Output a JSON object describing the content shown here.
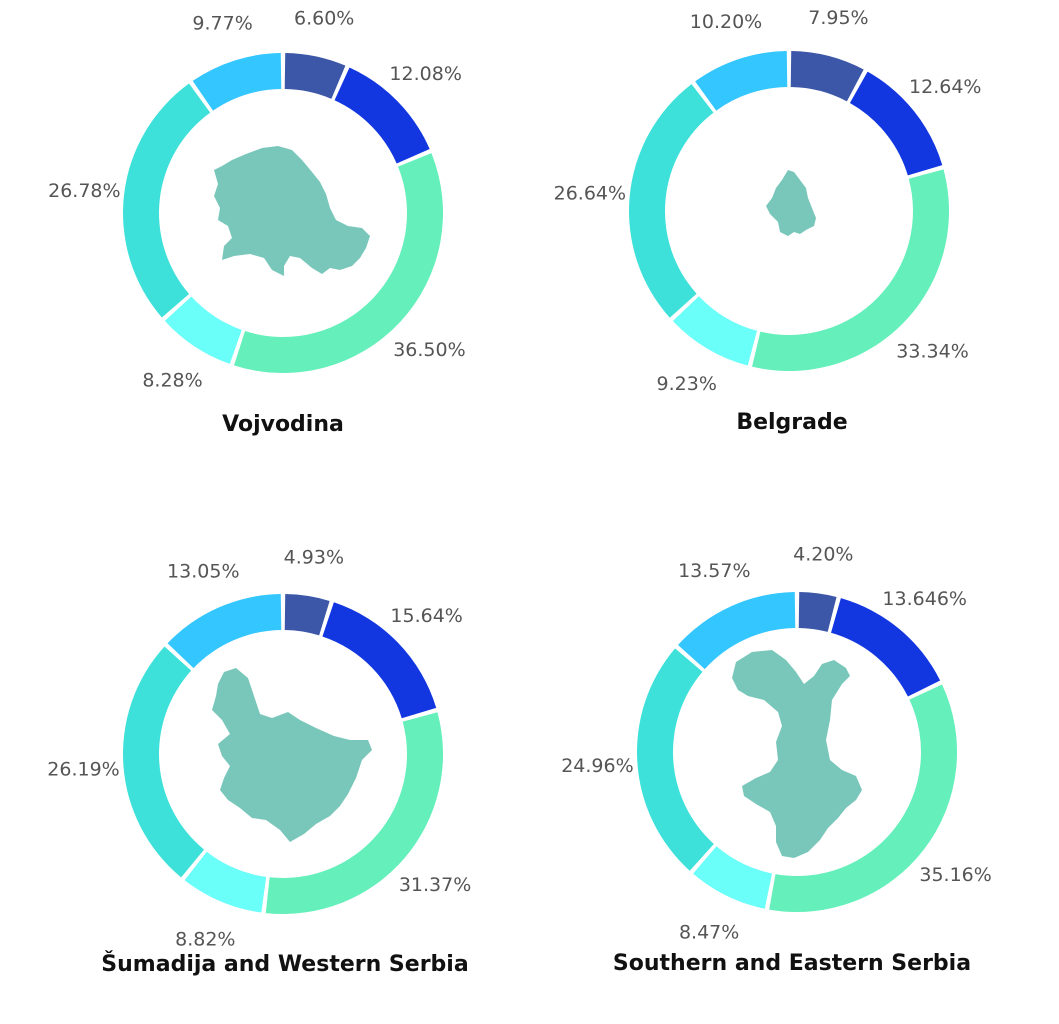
{
  "colors": {
    "segments": [
      "#3d57a8",
      "#1237e0",
      "#64efbb",
      "#6afff8",
      "#3de1da",
      "#33c6ff"
    ],
    "region_shape": "#79c7ba",
    "label_text": "#555555",
    "title_text": "#111111"
  },
  "chart_data": [
    {
      "type": "pie",
      "title": "Vojvodina",
      "values": [
        6.6,
        12.08,
        36.5,
        8.28,
        26.78,
        9.77
      ],
      "labels": [
        "6.60%",
        "12.08%",
        "36.50%",
        "8.28%",
        "26.78%",
        "9.77%"
      ]
    },
    {
      "type": "pie",
      "title": "Belgrade",
      "values": [
        7.95,
        12.64,
        33.34,
        9.23,
        26.64,
        10.2
      ],
      "labels": [
        "7.95%",
        "12.64%",
        "33.34%",
        "9.23%",
        "26.64%",
        "10.20%"
      ]
    },
    {
      "type": "pie",
      "title": "Šumadija and Western Serbia",
      "values": [
        4.93,
        15.64,
        31.37,
        8.82,
        26.19,
        13.05
      ],
      "labels": [
        "4.93%",
        "15.64%",
        "31.37%",
        "8.82%",
        "26.19%",
        "13.05%"
      ]
    },
    {
      "type": "pie",
      "title": "Southern and Eastern Serbia",
      "values": [
        4.2,
        13.646,
        35.16,
        8.47,
        24.96,
        13.57
      ],
      "labels": [
        "4.20%",
        "13.646%",
        "35.16%",
        "8.47%",
        "24.96%",
        "13.57%"
      ]
    }
  ]
}
